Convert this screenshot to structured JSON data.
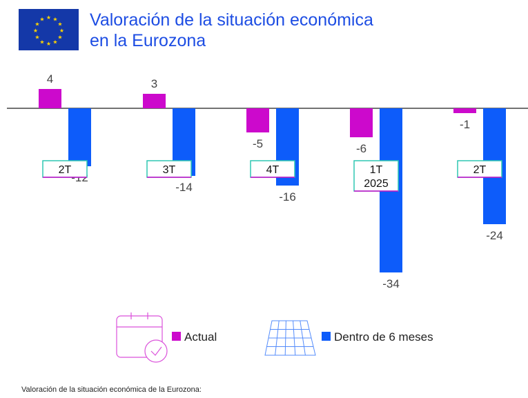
{
  "title_line1": "Valoración de la situación económica",
  "title_line2": "en la Eurozona",
  "footer_note": "Valoración de la situación económica de la Eurozona:",
  "colors": {
    "title": "#1d4de3",
    "actual": "#cc09cc",
    "future": "#0d5cfa",
    "teal": "#2ec7b2",
    "flag_blue": "#1438a8",
    "flag_star": "#ffd500",
    "axis": "#444444",
    "label": "#444444"
  },
  "icons": {
    "actual": "calendar-check-icon",
    "future": "solar-panel-icon"
  },
  "chart_data": {
    "type": "bar",
    "categories": [
      [
        "2T"
      ],
      [
        "3T"
      ],
      [
        "4T"
      ],
      [
        "1T",
        "2025"
      ],
      [
        "2T"
      ]
    ],
    "series": [
      {
        "name": "Actual",
        "values": [
          4,
          3,
          -5,
          -6,
          -1
        ]
      },
      {
        "name": "Dentro de 6 meses",
        "values": [
          -12,
          -14,
          -16,
          -34,
          -24
        ]
      }
    ],
    "legend_position": "bottom",
    "grid": false
  }
}
